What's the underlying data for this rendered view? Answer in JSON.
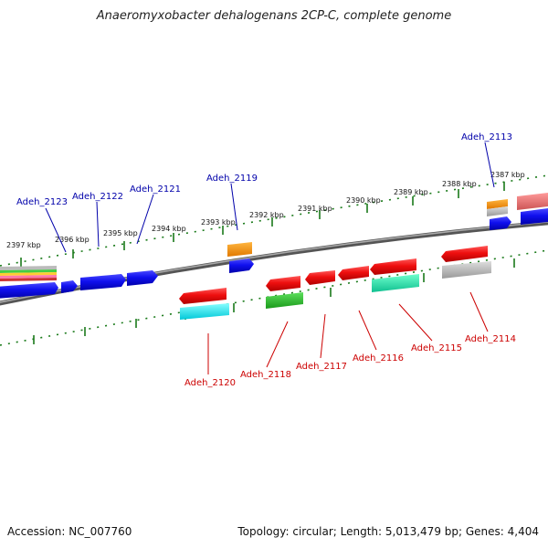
{
  "title": "Anaeromyxobacter dehalogenans 2CP-C, complete genome",
  "footer": {
    "accession": "Accession: NC_007760",
    "topology": "Topology: circular; Length: 5,013,479 bp; Genes: 4,404"
  },
  "colors": {
    "forward_label": "#0000aa",
    "reverse_label": "#cc0000",
    "ticks": "#1a7a1a",
    "backbone": "#777777"
  },
  "kbp_ticks": [
    "2397 kbp",
    "2396 kbp",
    "2395 kbp",
    "2394 kbp",
    "2393 kbp",
    "2392 kbp",
    "2391 kbp",
    "2390 kbp",
    "2389 kbp",
    "2388 kbp",
    "2387 kbp"
  ],
  "forward_genes": [
    "Adeh_2123",
    "Adeh_2122",
    "Adeh_2121",
    "Adeh_2119",
    "Adeh_2113"
  ],
  "reverse_genes": [
    "Adeh_2120",
    "Adeh_2118",
    "Adeh_2117",
    "Adeh_2116",
    "Adeh_2115",
    "Adeh_2114"
  ]
}
